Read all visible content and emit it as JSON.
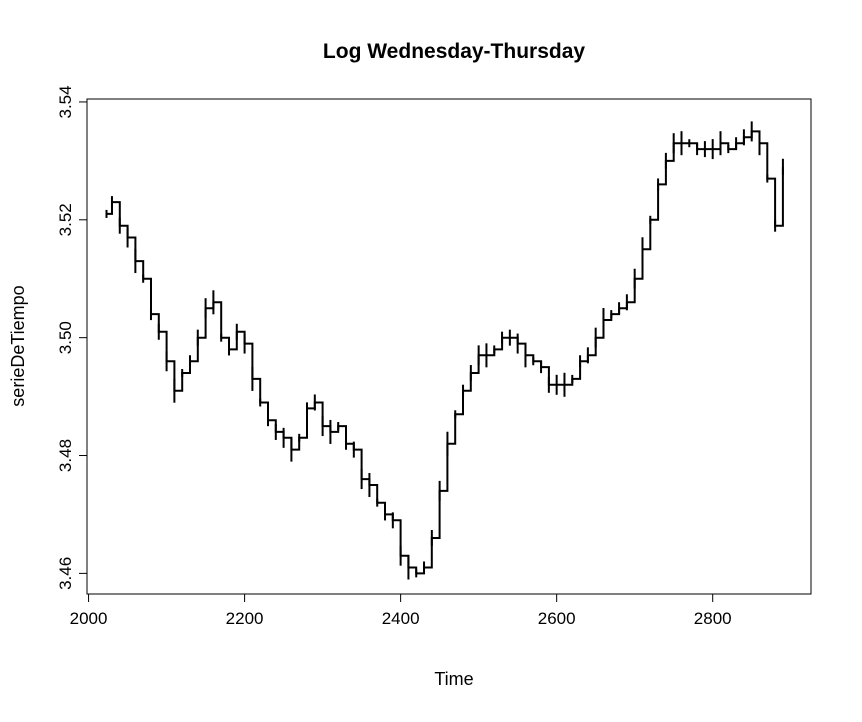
{
  "chart_data": {
    "type": "line",
    "title": "Log Wednesday-Thursday",
    "xlabel": "Time",
    "ylabel": "serieDeTiempo",
    "xlim": [
      1998,
      2926
    ],
    "ylim": [
      3.4565,
      3.5405
    ],
    "x_ticks": [
      2000,
      2200,
      2400,
      2600,
      2800
    ],
    "y_ticks": [
      3.46,
      3.48,
      3.5,
      3.52,
      3.54
    ],
    "x_tick_labels": [
      "2000",
      "2200",
      "2400",
      "2600",
      "2800"
    ],
    "y_tick_labels": [
      "3.46",
      "3.48",
      "3.50",
      "3.52",
      "3.54"
    ],
    "grid": false,
    "legend": "none",
    "line_color": "#000000",
    "series": [
      {
        "x": [
          2023,
          2030,
          2040,
          2050,
          2060,
          2070,
          2080,
          2090,
          2100,
          2110,
          2120,
          2130,
          2140,
          2150,
          2160,
          2170,
          2180,
          2190,
          2200,
          2210,
          2220,
          2230,
          2240,
          2250,
          2260,
          2270,
          2280,
          2290,
          2300,
          2310,
          2320,
          2330,
          2340,
          2350,
          2360,
          2370,
          2380,
          2390,
          2400,
          2410,
          2420,
          2430,
          2440,
          2450,
          2460,
          2470,
          2480,
          2490,
          2500,
          2510,
          2520,
          2530,
          2540,
          2550,
          2560,
          2570,
          2580,
          2590,
          2600,
          2610,
          2620,
          2630,
          2640,
          2650,
          2660,
          2670,
          2680,
          2690,
          2700,
          2710,
          2720,
          2730,
          2740,
          2750,
          2760,
          2770,
          2780,
          2790,
          2800,
          2810,
          2820,
          2830,
          2840,
          2850,
          2860,
          2870,
          2880,
          2890
        ],
        "values": [
          3.521,
          3.523,
          3.519,
          3.517,
          3.513,
          3.51,
          3.504,
          3.501,
          3.496,
          3.491,
          3.494,
          3.496,
          3.5,
          3.505,
          3.506,
          3.5,
          3.498,
          3.501,
          3.499,
          3.493,
          3.489,
          3.486,
          3.484,
          3.483,
          3.481,
          3.483,
          3.488,
          3.489,
          3.485,
          3.484,
          3.485,
          3.482,
          3.481,
          3.476,
          3.475,
          3.472,
          3.47,
          3.469,
          3.463,
          3.461,
          3.46,
          3.461,
          3.466,
          3.474,
          3.482,
          3.487,
          3.491,
          3.494,
          3.497,
          3.497,
          3.498,
          3.5,
          3.5,
          3.499,
          3.497,
          3.496,
          3.495,
          3.492,
          3.492,
          3.492,
          3.493,
          3.496,
          3.497,
          3.5,
          3.503,
          3.504,
          3.505,
          3.506,
          3.51,
          3.515,
          3.52,
          3.526,
          3.53,
          3.533,
          3.533,
          3.533,
          3.532,
          3.532,
          3.532,
          3.533,
          3.532,
          3.533,
          3.534,
          3.535,
          3.533,
          3.527,
          3.519,
          3.529
        ]
      }
    ]
  }
}
